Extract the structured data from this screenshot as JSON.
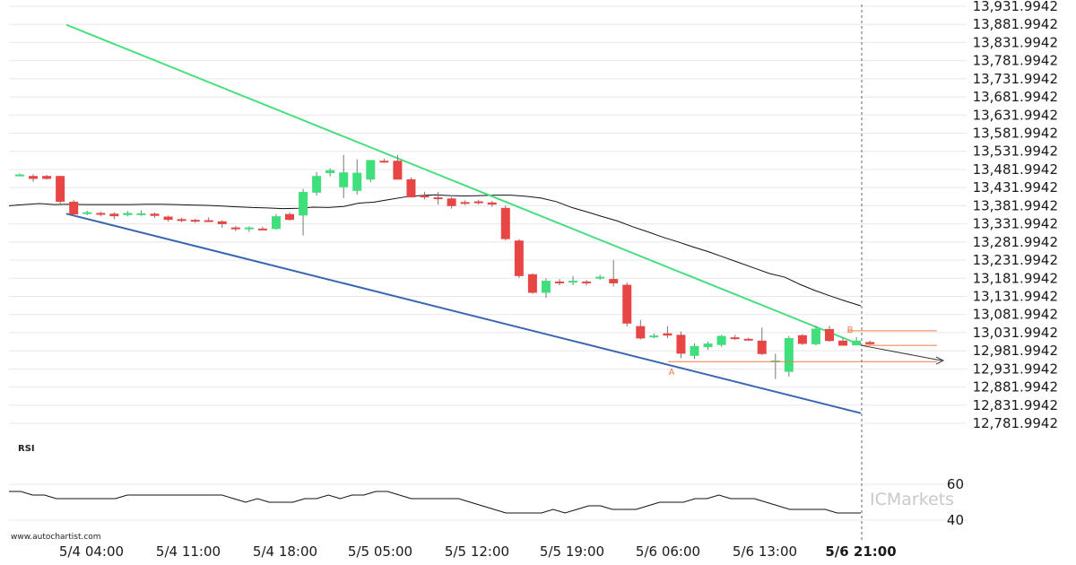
{
  "watermark": "www.autochartist.com",
  "brand": "ICMarkets",
  "chart_data": [
    {
      "type": "candlestick",
      "y_ticks": [
        "13,931.9942",
        "13,881.9942",
        "13,831.9942",
        "13,781.9942",
        "13,731.9942",
        "13,681.9942",
        "13,631.9942",
        "13,581.9942",
        "13,531.9942",
        "13,481.9942",
        "13,431.9942",
        "13,381.9942",
        "13,331.9942",
        "13,281.9942",
        "13,231.9942",
        "13,181.9942",
        "13,131.9942",
        "13,081.9942",
        "13,031.9942",
        "12,981.9942",
        "12,931.9942",
        "12,881.9942",
        "12,831.9942",
        "12,781.9942"
      ],
      "ylim": [
        12781.9942,
        13931.9942
      ],
      "x_ticks": [
        "5/4 04:00",
        "5/4 11:00",
        "5/4 18:00",
        "5/5 05:00",
        "5/5 12:00",
        "5/5 19:00",
        "5/6 06:00",
        "5/6 13:00",
        "5/6 21:00"
      ],
      "candles": [
        [
          13466,
          13471,
          13464,
          13468
        ],
        [
          13464,
          13469,
          13448,
          13456
        ],
        [
          13464,
          13467,
          13454,
          13456
        ],
        [
          13464,
          13465,
          13385,
          13393
        ],
        [
          13393,
          13398,
          13353,
          13358
        ],
        [
          13360,
          13368,
          13356,
          13364
        ],
        [
          13362,
          13366,
          13353,
          13358
        ],
        [
          13360,
          13364,
          13345,
          13353
        ],
        [
          13356,
          13367,
          13353,
          13362
        ],
        [
          13360,
          13369,
          13354,
          13361
        ],
        [
          13360,
          13363,
          13349,
          13354
        ],
        [
          13352,
          13355,
          13338,
          13343
        ],
        [
          13345,
          13349,
          13337,
          13343
        ],
        [
          13343,
          13346,
          13335,
          13340
        ],
        [
          13342,
          13350,
          13337,
          13341
        ],
        [
          13339,
          13342,
          13321,
          13331
        ],
        [
          13322,
          13326,
          13312,
          13319
        ],
        [
          13318,
          13325,
          13310,
          13322
        ],
        [
          13319,
          13324,
          13316,
          13318
        ],
        [
          13318,
          13359,
          13316,
          13353
        ],
        [
          13359,
          13364,
          13341,
          13343
        ],
        [
          13355,
          13428,
          13300,
          13420
        ],
        [
          13418,
          13475,
          13410,
          13464
        ],
        [
          13472,
          13485,
          13463,
          13480
        ],
        [
          13433,
          13522,
          13403,
          13474
        ],
        [
          13423,
          13510,
          13413,
          13473
        ],
        [
          13454,
          13508,
          13447,
          13508
        ],
        [
          13506,
          13512,
          13500,
          13504
        ],
        [
          13506,
          13522,
          13455,
          13454
        ],
        [
          13455,
          13460,
          13410,
          13405
        ],
        [
          13410,
          13420,
          13400,
          13406
        ],
        [
          13405,
          13420,
          13385,
          13400
        ],
        [
          13402,
          13406,
          13374,
          13381
        ],
        [
          13392,
          13397,
          13384,
          13389
        ],
        [
          13394,
          13398,
          13385,
          13389
        ],
        [
          13391,
          13395,
          13379,
          13385
        ],
        [
          13376,
          13383,
          13286,
          13290
        ],
        [
          13286,
          13290,
          13183,
          13188
        ],
        [
          13193,
          13196,
          13139,
          13142
        ],
        [
          13142,
          13182,
          13128,
          13175
        ],
        [
          13173,
          13180,
          13163,
          13168
        ],
        [
          13171,
          13188,
          13163,
          13175
        ],
        [
          13173,
          13177,
          13162,
          13168
        ],
        [
          13184,
          13191,
          13178,
          13186
        ],
        [
          13180,
          13232,
          13159,
          13168
        ],
        [
          13164,
          13170,
          13049,
          13057
        ],
        [
          13050,
          13067,
          13013,
          13016
        ],
        [
          13022,
          13030,
          13017,
          13024
        ],
        [
          13030,
          13050,
          13017,
          13024
        ],
        [
          13026,
          13035,
          12962,
          12974
        ],
        [
          12968,
          13002,
          12960,
          12995
        ],
        [
          12992,
          13007,
          12985,
          13002
        ],
        [
          12998,
          13026,
          12993,
          13023
        ],
        [
          13019,
          13026,
          13012,
          13016
        ],
        [
          13015,
          13018,
          13010,
          13012
        ],
        [
          13010,
          13046,
          12970,
          12973
        ],
        [
          12954,
          12974,
          12904,
          12955
        ],
        [
          12924,
          13023,
          12911,
          13017
        ],
        [
          13025,
          13028,
          12998,
          13001
        ],
        [
          13000,
          13051,
          12997,
          13043
        ],
        [
          13042,
          13051,
          13007,
          13009
        ],
        [
          13010,
          13018,
          12998,
          12996
        ],
        [
          12997,
          13020,
          12998,
          13010
        ],
        [
          13006,
          13010,
          12998,
          13000
        ]
      ],
      "moving_average": [
        13382,
        13385,
        13388,
        13385,
        13386,
        13385,
        13385,
        13385,
        13385,
        13386,
        13386,
        13385,
        13384,
        13383,
        13381,
        13379,
        13377,
        13376,
        13374,
        13375,
        13378,
        13377,
        13380,
        13389,
        13392,
        13399,
        13406,
        13410,
        13412,
        13410,
        13409,
        13410,
        13411,
        13411,
        13408,
        13403,
        13393,
        13377,
        13365,
        13352,
        13340,
        13324,
        13310,
        13295,
        13282,
        13268,
        13255,
        13240,
        13225,
        13210,
        13195,
        13185,
        13165,
        13148,
        13133,
        13119,
        13106
      ],
      "upper_trendline": {
        "from": [
          13881,
          "5/4 00:00"
        ],
        "to": [
          12998,
          "5/6 21:00"
        ],
        "color": "#4ade80"
      },
      "lower_trendline": {
        "from": [
          13360,
          "5/4 03:00"
        ],
        "to": [
          12810,
          "5/6 21:00"
        ],
        "color": "#3a66b0"
      },
      "pattern_points": [
        {
          "label": "A",
          "value": 12952
        },
        {
          "label": "B",
          "value": 13037
        }
      ],
      "levels": [
        13037,
        12997,
        12952
      ],
      "forecast_arrow": {
        "from": 12997,
        "to": 12955
      }
    },
    {
      "type": "line",
      "title": "RSI",
      "y_ticks": [
        "60",
        "40"
      ],
      "ylim": [
        30,
        70
      ],
      "values": [
        56,
        56,
        54,
        54,
        52,
        52,
        52,
        52,
        52,
        52,
        54,
        54,
        54,
        54,
        54,
        54,
        54,
        54,
        54,
        52,
        50,
        52,
        50,
        50,
        50,
        52,
        52,
        54,
        52,
        54,
        54,
        56,
        56,
        54,
        52,
        52,
        52,
        52,
        52,
        50,
        48,
        46,
        44,
        44,
        44,
        44,
        46,
        44,
        46,
        48,
        48,
        46,
        46,
        46,
        48,
        50,
        50,
        50,
        52,
        52,
        54,
        52,
        52,
        52,
        50,
        48,
        46,
        46,
        46,
        46,
        44,
        44,
        44
      ]
    }
  ],
  "colors": {
    "up": "#3fe07c",
    "down": "#e84545",
    "ma": "#111111",
    "grid": "#e8e8e8"
  }
}
